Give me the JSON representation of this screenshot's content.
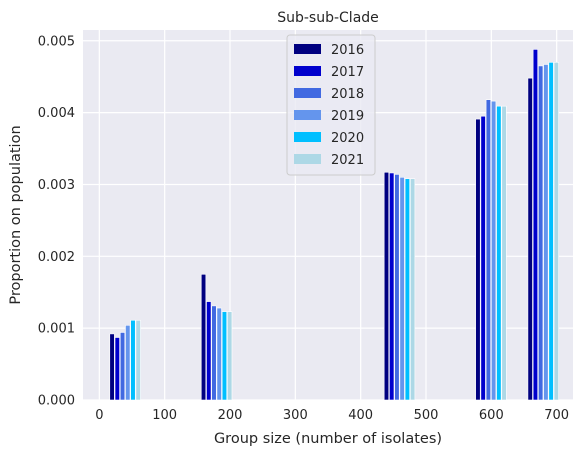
{
  "chart_data": {
    "type": "bar",
    "title": "Sub-sub-Clade",
    "xlabel": "Group size (number of isolates)",
    "ylabel": "Proportion on population",
    "xlim": [
      -25,
      725
    ],
    "ylim": [
      0,
      0.00515
    ],
    "xticks": [
      0,
      100,
      200,
      300,
      400,
      500,
      600,
      700
    ],
    "yticks": [
      0.0,
      0.001,
      0.002,
      0.003,
      0.004,
      0.005
    ],
    "ytick_labels": [
      "0.000",
      "0.001",
      "0.002",
      "0.003",
      "0.004",
      "0.005"
    ],
    "grid": true,
    "legend_position": "top-center",
    "groups": [
      16,
      156,
      436,
      576,
      656
    ],
    "series": [
      {
        "name": "2016",
        "color": "#000080",
        "values": [
          0.00092,
          0.00175,
          0.00317,
          0.00391,
          0.00448
        ]
      },
      {
        "name": "2017",
        "color": "#0000CD",
        "values": [
          0.00087,
          0.00137,
          0.00316,
          0.00395,
          0.00488
        ]
      },
      {
        "name": "2018",
        "color": "#4169E1",
        "values": [
          0.00094,
          0.00131,
          0.00314,
          0.00418,
          0.00465
        ]
      },
      {
        "name": "2019",
        "color": "#6495ED",
        "values": [
          0.00104,
          0.00128,
          0.0031,
          0.00416,
          0.00467
        ]
      },
      {
        "name": "2020",
        "color": "#00BFFF",
        "values": [
          0.00111,
          0.00123,
          0.00308,
          0.00409,
          0.0047
        ]
      },
      {
        "name": "2021",
        "color": "#ADD8E6",
        "values": [
          0.00111,
          0.00123,
          0.00308,
          0.00409,
          0.0047
        ]
      }
    ]
  }
}
